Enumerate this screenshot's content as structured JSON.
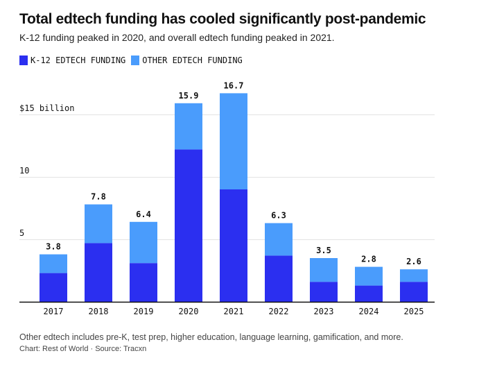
{
  "title": "Total edtech funding has cooled significantly post-pandemic",
  "subtitle": "K-12 funding peaked in 2020, and overall edtech funding peaked in 2021.",
  "footnote": "Other edtech includes pre-K, test prep, higher education, language learning, gamification, and more.",
  "credit": "Chart: Rest of World · Source: Tracxn",
  "colors": {
    "k12": "#2b2ff0",
    "other": "#4a9cfc",
    "grid": "#e3e3e3",
    "axis": "#111111"
  },
  "chart_data": {
    "type": "bar",
    "stacked": true,
    "title": "Total edtech funding has cooled significantly post-pandemic",
    "subtitle": "K-12 funding peaked in 2020, and overall edtech funding peaked in 2021.",
    "xlabel": "",
    "ylabel": "",
    "ylim": [
      0,
      17
    ],
    "grid": true,
    "legend_position": "top-left",
    "categories": [
      "2017",
      "2018",
      "2019",
      "2020",
      "2021",
      "2022",
      "2023",
      "2024",
      "2025"
    ],
    "series": [
      {
        "name": "K-12 EDTECH FUNDING",
        "values": [
          2.3,
          4.7,
          3.1,
          12.2,
          9.0,
          3.7,
          1.6,
          1.3,
          1.6
        ]
      },
      {
        "name": "OTHER EDTECH FUNDING",
        "values": [
          1.5,
          3.1,
          3.3,
          3.7,
          7.7,
          2.6,
          1.9,
          1.5,
          1.0
        ]
      }
    ],
    "totals": [
      "3.8",
      "7.8",
      "6.4",
      "15.9",
      "16.7",
      "6.3",
      "3.5",
      "2.8",
      "2.6"
    ],
    "y_ticks": [
      {
        "value": 5,
        "label": "5"
      },
      {
        "value": 10,
        "label": "10"
      },
      {
        "value": 15,
        "label": "$15 billion"
      }
    ]
  }
}
